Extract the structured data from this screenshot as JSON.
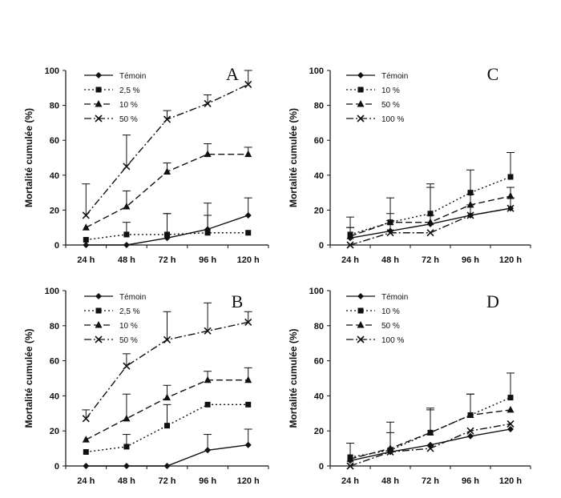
{
  "chart_data": [
    {
      "type": "line",
      "panel_label": "A",
      "ylabel": "Mortalité cumulée (%)",
      "ylim": [
        0,
        100
      ],
      "yticks": [
        "0",
        "20",
        "40",
        "60",
        "80",
        "100"
      ],
      "categories": [
        "24 h",
        "48 h",
        "72 h",
        "96 h",
        "120 h"
      ],
      "series": [
        {
          "name": "Témoin",
          "marker": "diamond",
          "dash": "solid",
          "values": [
            0,
            0,
            4,
            9,
            17
          ],
          "errors": [
            0,
            0,
            14,
            15,
            10
          ]
        },
        {
          "name": "2,5 %",
          "marker": "square",
          "dash": "dotted",
          "values": [
            3,
            6,
            6,
            7,
            7
          ],
          "errors": [
            0,
            7,
            12,
            10,
            0
          ]
        },
        {
          "name": "10 %",
          "marker": "triangle",
          "dash": "dashed",
          "values": [
            10,
            22,
            42,
            52,
            52
          ],
          "errors": [
            0,
            9,
            5,
            6,
            4
          ]
        },
        {
          "name": "50 %",
          "marker": "x",
          "dash": "dashdot",
          "values": [
            17,
            45,
            72,
            81,
            92
          ],
          "errors": [
            18,
            18,
            5,
            5,
            8
          ]
        }
      ]
    },
    {
      "type": "line",
      "panel_label": "C",
      "ylabel": "Mortalité cumulée (%)",
      "ylim": [
        0,
        100
      ],
      "yticks": [
        "0",
        "20",
        "40",
        "60",
        "80",
        "100"
      ],
      "categories": [
        "24 h",
        "48 h",
        "72 h",
        "96 h",
        "120 h"
      ],
      "series": [
        {
          "name": "Témoin",
          "marker": "diamond",
          "dash": "solid",
          "values": [
            4,
            8,
            12,
            17,
            21
          ],
          "errors": [
            6,
            6,
            5,
            6,
            6
          ]
        },
        {
          "name": "10 %",
          "marker": "square",
          "dash": "dotted",
          "values": [
            6,
            13,
            18,
            30,
            39
          ],
          "errors": [
            10,
            14,
            17,
            13,
            14
          ]
        },
        {
          "name": "50 %",
          "marker": "triangle",
          "dash": "dashed",
          "values": [
            5,
            13,
            13,
            23,
            28
          ],
          "errors": [
            5,
            5,
            20,
            6,
            5
          ]
        },
        {
          "name": "100 %",
          "marker": "x",
          "dash": "dashdot",
          "values": [
            0,
            7,
            7,
            17,
            21
          ],
          "errors": [
            0,
            0,
            0,
            0,
            0
          ]
        }
      ]
    },
    {
      "type": "line",
      "panel_label": "B",
      "ylabel": "Mortalité cumulée (%)",
      "ylim": [
        0,
        100
      ],
      "yticks": [
        "0",
        "20",
        "40",
        "60",
        "80",
        "100"
      ],
      "categories": [
        "24 h",
        "48 h",
        "72 h",
        "96 h",
        "120 h"
      ],
      "series": [
        {
          "name": "Témoin",
          "marker": "diamond",
          "dash": "solid",
          "values": [
            0,
            0,
            0,
            9,
            12
          ],
          "errors": [
            0,
            0,
            0,
            9,
            9
          ]
        },
        {
          "name": "2,5 %",
          "marker": "square",
          "dash": "dotted",
          "values": [
            8,
            11,
            23,
            35,
            35
          ],
          "errors": [
            0,
            7,
            12,
            0,
            0
          ]
        },
        {
          "name": "10 %",
          "marker": "triangle",
          "dash": "dashed",
          "values": [
            15,
            27,
            39,
            49,
            49
          ],
          "errors": [
            0,
            14,
            7,
            5,
            7
          ]
        },
        {
          "name": "50 %",
          "marker": "x",
          "dash": "dashdot",
          "values": [
            27,
            57,
            72,
            77,
            82
          ],
          "errors": [
            5,
            7,
            16,
            16,
            6
          ]
        }
      ]
    },
    {
      "type": "line",
      "panel_label": "D",
      "ylabel": "Mortalité cumulée (%)",
      "ylim": [
        0,
        100
      ],
      "yticks": [
        "0",
        "20",
        "40",
        "60",
        "80",
        "100"
      ],
      "categories": [
        "24 h",
        "48 h",
        "72 h",
        "96 h",
        "120 h"
      ],
      "series": [
        {
          "name": "Témoin",
          "marker": "diamond",
          "dash": "solid",
          "values": [
            3,
            8,
            12,
            17,
            21
          ],
          "errors": [
            0,
            0,
            0,
            0,
            0
          ]
        },
        {
          "name": "10 %",
          "marker": "square",
          "dash": "dotted",
          "values": [
            5,
            9,
            19,
            29,
            39
          ],
          "errors": [
            8,
            10,
            14,
            12,
            14
          ]
        },
        {
          "name": "50 %",
          "marker": "triangle",
          "dash": "dashed",
          "values": [
            4,
            10,
            19,
            29,
            32
          ],
          "errors": [
            0,
            15,
            13,
            12,
            0
          ]
        },
        {
          "name": "100 %",
          "marker": "x",
          "dash": "dashdot",
          "values": [
            0,
            8,
            10,
            20,
            24
          ],
          "errors": [
            0,
            0,
            0,
            0,
            0
          ]
        }
      ]
    }
  ]
}
